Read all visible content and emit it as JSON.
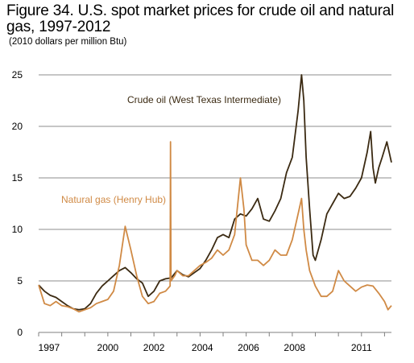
{
  "title": "Figure 34. U.S. spot market prices for crude oil and natural gas, 1997-2012",
  "subtitle": "(2010 dollars per million Btu)",
  "colors": {
    "crude": "#3b2a12",
    "gas": "#d08a45",
    "grid": "#8c8c8c",
    "axis": "#7f7f7f"
  },
  "chart_data": {
    "type": "line",
    "title": "Figure 34. U.S. spot market prices for crude oil and natural gas, 1997-2012",
    "subtitle": "(2010 dollars per million Btu)",
    "xlabel": "",
    "ylabel": "",
    "xlim": [
      1997.0,
      2012.3
    ],
    "ylim": [
      0,
      25
    ],
    "yticks": [
      0,
      5,
      10,
      15,
      20,
      25
    ],
    "xtick_labels": [
      "1997",
      "2000",
      "2002",
      "2004",
      "2006",
      "2008",
      "2011"
    ],
    "xtick_values": [
      1997.45,
      2000.0,
      2002.0,
      2004.1,
      2006.1,
      2008.1,
      2011.0
    ],
    "grid": "horizontal",
    "legend": "inline labels",
    "series": [
      {
        "name": "Crude oil (West Texas Intermediate)",
        "x": [
          1997.0,
          1997.25,
          1997.5,
          1997.75,
          1998.0,
          1998.25,
          1998.5,
          1998.75,
          1999.0,
          1999.25,
          1999.5,
          1999.75,
          2000.0,
          2000.25,
          2000.5,
          2000.75,
          2001.0,
          2001.25,
          2001.5,
          2001.75,
          2002.0,
          2002.25,
          2002.5,
          2002.75,
          2003.0,
          2003.25,
          2003.5,
          2003.75,
          2004.0,
          2004.25,
          2004.5,
          2004.75,
          2005.0,
          2005.25,
          2005.5,
          2005.75,
          2006.0,
          2006.25,
          2006.5,
          2006.75,
          2007.0,
          2007.25,
          2007.5,
          2007.75,
          2008.0,
          2008.25,
          2008.4,
          2008.5,
          2008.6,
          2008.75,
          2008.9,
          2009.0,
          2009.25,
          2009.5,
          2009.75,
          2010.0,
          2010.25,
          2010.5,
          2010.75,
          2011.0,
          2011.25,
          2011.4,
          2011.5,
          2011.6,
          2011.75,
          2011.9,
          2012.1,
          2012.3
        ],
        "values": [
          4.6,
          4.0,
          3.6,
          3.4,
          3.0,
          2.6,
          2.3,
          2.2,
          2.3,
          2.8,
          3.8,
          4.5,
          5.0,
          5.5,
          6.0,
          6.3,
          5.8,
          5.2,
          4.8,
          3.5,
          4.0,
          5.0,
          5.2,
          5.3,
          6.0,
          5.6,
          5.4,
          5.8,
          6.2,
          7.0,
          8.0,
          9.2,
          9.5,
          9.2,
          11.0,
          11.5,
          11.3,
          12.0,
          13.0,
          11.0,
          10.8,
          11.8,
          13.0,
          15.5,
          17.0,
          21.5,
          25.0,
          22.5,
          17.0,
          12.0,
          7.5,
          7.0,
          9.0,
          11.5,
          12.5,
          13.5,
          13.0,
          13.2,
          14.0,
          15.0,
          17.5,
          19.5,
          16.0,
          14.5,
          16.0,
          17.0,
          18.5,
          16.5
        ]
      },
      {
        "name": "Natural gas (Henry Hub)",
        "x": [
          1997.0,
          1997.25,
          1997.5,
          1997.75,
          1998.0,
          1998.25,
          1998.5,
          1998.75,
          1999.0,
          1999.25,
          1999.5,
          1999.75,
          2000.0,
          2000.25,
          2000.4,
          2000.5,
          2000.75,
          2001.0,
          2001.25,
          2001.5,
          2001.75,
          2002.0,
          2002.25,
          2002.5,
          2002.7,
          2002.72,
          2002.74,
          2002.9,
          2003.0,
          2003.25,
          2003.5,
          2003.75,
          2004.0,
          2004.25,
          2004.5,
          2004.75,
          2005.0,
          2005.25,
          2005.5,
          2005.75,
          2005.9,
          2006.0,
          2006.25,
          2006.5,
          2006.75,
          2007.0,
          2007.25,
          2007.5,
          2007.75,
          2008.0,
          2008.25,
          2008.4,
          2008.5,
          2008.6,
          2008.75,
          2009.0,
          2009.25,
          2009.5,
          2009.75,
          2010.0,
          2010.25,
          2010.5,
          2010.75,
          2011.0,
          2011.25,
          2011.5,
          2011.75,
          2012.0,
          2012.15,
          2012.3
        ],
        "values": [
          4.6,
          2.8,
          2.6,
          3.0,
          2.6,
          2.5,
          2.3,
          2.0,
          2.2,
          2.4,
          2.8,
          3.0,
          3.2,
          4.0,
          5.5,
          6.5,
          10.3,
          8.0,
          5.5,
          3.5,
          2.8,
          3.0,
          3.8,
          4.0,
          4.5,
          18.5,
          5.0,
          5.5,
          6.0,
          5.5,
          5.5,
          6.0,
          6.5,
          6.8,
          7.2,
          8.0,
          7.5,
          8.0,
          9.5,
          15.0,
          12.0,
          8.5,
          7.0,
          7.0,
          6.5,
          7.0,
          8.0,
          7.5,
          7.5,
          9.0,
          11.5,
          13.0,
          10.0,
          8.0,
          6.0,
          4.5,
          3.5,
          3.5,
          4.0,
          6.0,
          5.0,
          4.5,
          4.0,
          4.4,
          4.6,
          4.5,
          3.8,
          3.0,
          2.2,
          2.6
        ]
      }
    ]
  }
}
